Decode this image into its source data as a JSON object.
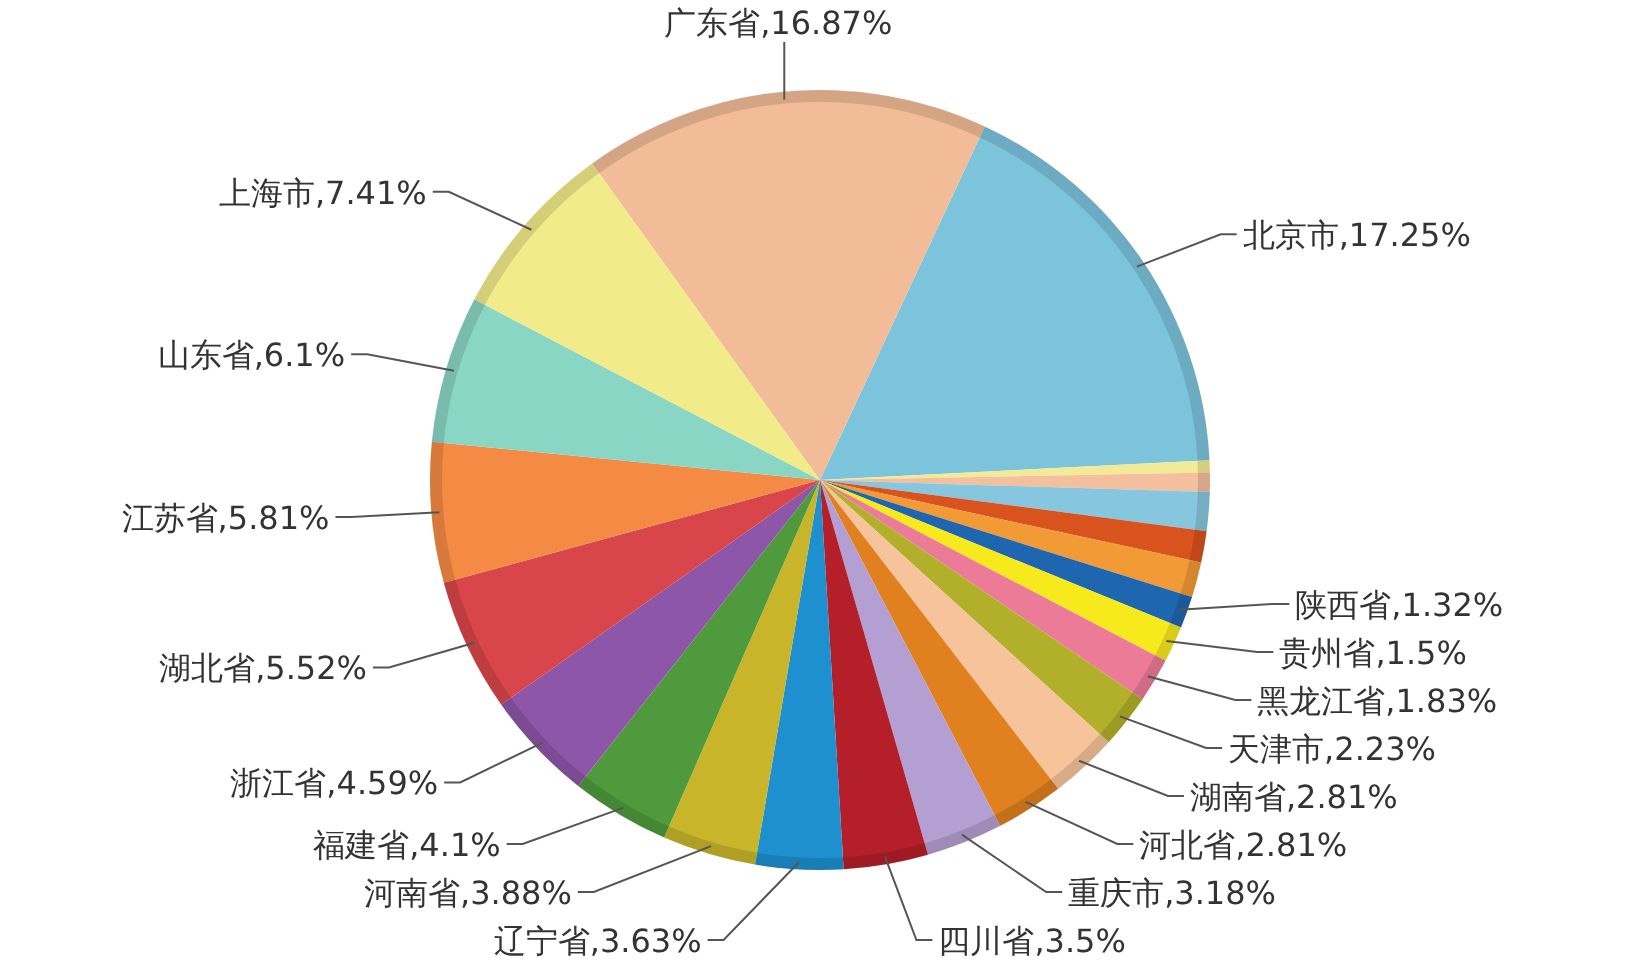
{
  "chart_data": {
    "type": "pie",
    "value_labels": [
      "17.25%",
      null,
      null,
      null,
      null,
      null,
      "1.32%",
      "1.5%",
      "1.83%",
      "2.23%",
      "2.81%",
      "2.81%",
      "3.18%",
      "3.5%",
      "3.63%",
      "3.88%",
      "4.1%",
      "4.59%",
      "5.52%",
      "5.81%",
      "6.1%",
      "7.41%",
      "16.87%"
    ],
    "categories": [
      "北京市",
      null,
      null,
      null,
      null,
      null,
      "陕西省",
      "贵州省",
      "黑龙江省",
      "天津市",
      "湖南省",
      "河北省",
      "重庆市",
      "四川省",
      "辽宁省",
      "河南省",
      "福建省",
      "浙江省",
      "湖北省",
      "江苏省",
      "山东省",
      "上海市",
      "广东省"
    ],
    "values": [
      17.25,
      0.5,
      0.8,
      1.6,
      1.3,
      1.46,
      1.32,
      1.5,
      1.83,
      2.23,
      2.81,
      2.81,
      3.18,
      3.5,
      3.63,
      3.88,
      4.1,
      4.59,
      5.52,
      5.81,
      6.1,
      7.41,
      16.87
    ],
    "colors": [
      "#7cc3dc",
      "#f2ea96",
      "#f3bf9c",
      "#86c7df",
      "#d9531e",
      "#f29a35",
      "#1f66b0",
      "#f6e91c",
      "#ec7b97",
      "#b2b02a",
      "#f6c39b",
      "#e0801f",
      "#b49fd2",
      "#b41f2a",
      "#1e90d0",
      "#c8b52a",
      "#4f9a3c",
      "#8e56a8",
      "#d8464b",
      "#f48a44",
      "#8ad6c5",
      "#f2eb8a",
      "#f2bc98"
    ]
  }
}
